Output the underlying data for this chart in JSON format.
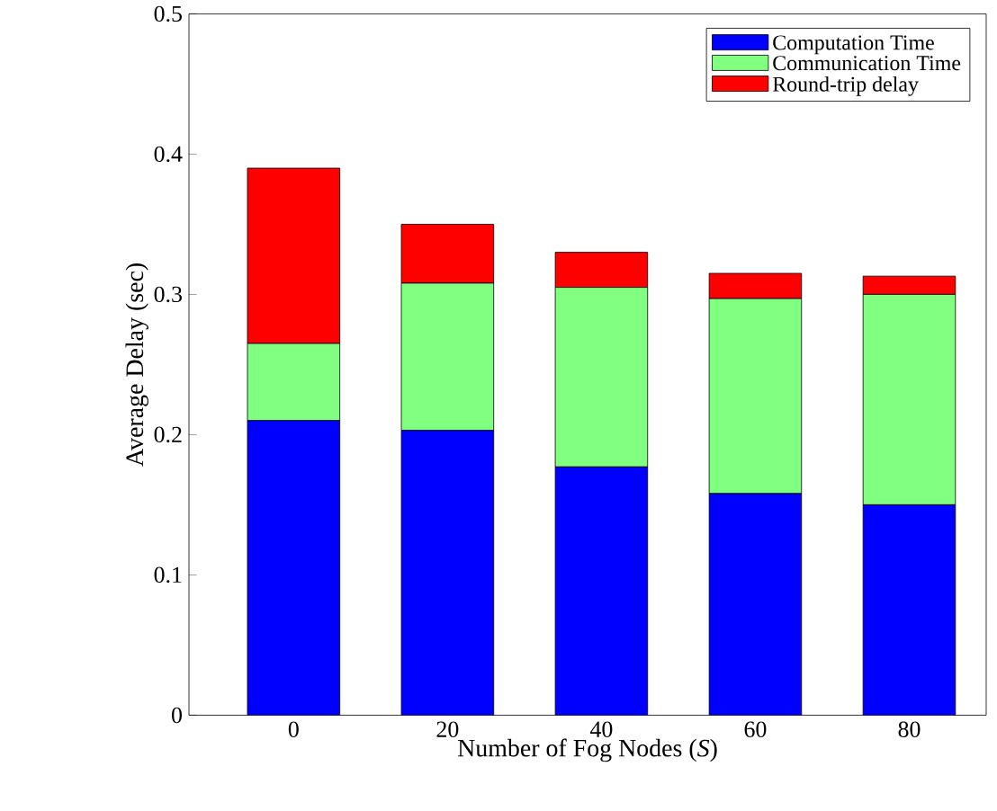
{
  "chart_data": {
    "type": "bar",
    "stacked": true,
    "xlabel": "Number of Fog Nodes (*S*)",
    "ylabel": "Average Delay (sec)",
    "categories": [
      "0",
      "20",
      "40",
      "60",
      "80"
    ],
    "series": [
      {
        "name": "Computation Time",
        "color": "#0000ff",
        "values": [
          0.21,
          0.203,
          0.177,
          0.158,
          0.15
        ]
      },
      {
        "name": "Communication Time",
        "color": "#80ff80",
        "values": [
          0.055,
          0.105,
          0.128,
          0.139,
          0.15
        ]
      },
      {
        "name": "Round-trip delay",
        "color": "#ff0000",
        "values": [
          0.125,
          0.042,
          0.025,
          0.018,
          0.013
        ]
      }
    ],
    "ylim": [
      0,
      0.5
    ],
    "yticks": [
      0,
      0.1,
      0.2,
      0.3,
      0.4,
      0.5
    ],
    "legend": "top right",
    "grid": false
  }
}
